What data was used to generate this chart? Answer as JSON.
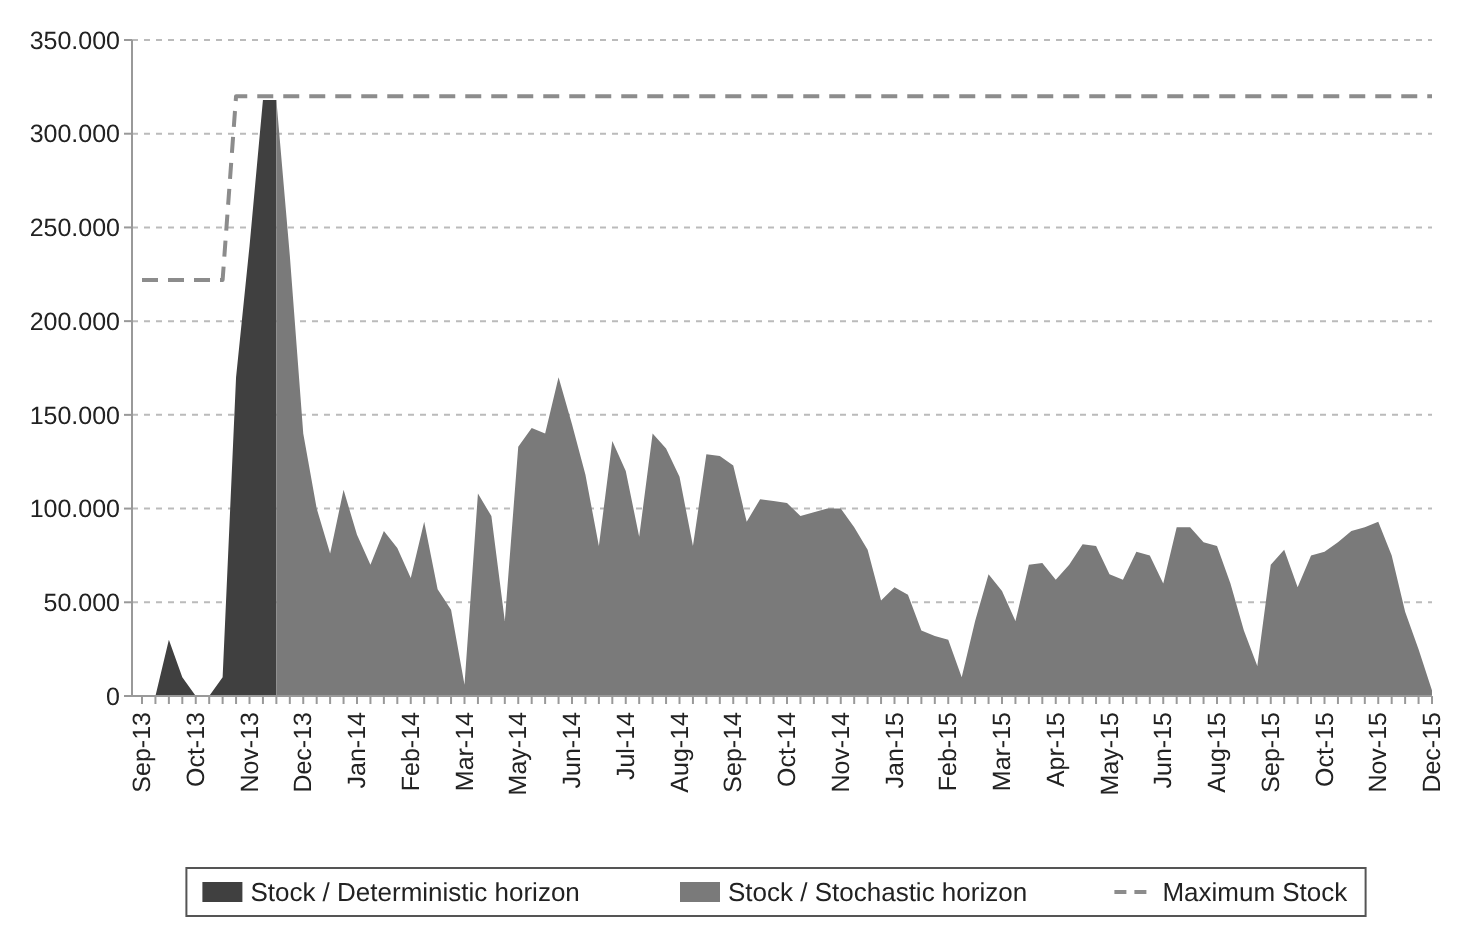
{
  "chart_data": {
    "type": "area",
    "categories": [
      "Sep-13",
      null,
      null,
      null,
      "Oct-13",
      null,
      null,
      null,
      "Nov-13",
      null,
      null,
      null,
      "Dec-13",
      null,
      null,
      null,
      "Jan-14",
      null,
      null,
      null,
      "Feb-14",
      null,
      null,
      null,
      "Mar-14",
      null,
      null,
      null,
      "May-14",
      null,
      null,
      null,
      "Jun-14",
      null,
      null,
      null,
      "Jul-14",
      null,
      null,
      null,
      "Aug-14",
      null,
      null,
      null,
      "Sep-14",
      null,
      null,
      null,
      "Oct-14",
      null,
      null,
      null,
      "Nov-14",
      null,
      null,
      null,
      "Jan-15",
      null,
      null,
      null,
      "Feb-15",
      null,
      null,
      null,
      "Mar-15",
      null,
      null,
      null,
      "Apr-15",
      null,
      null,
      null,
      "May-15",
      null,
      null,
      null,
      "Jun-15",
      null,
      null,
      null,
      "Aug-15",
      null,
      null,
      null,
      "Sep-15",
      null,
      null,
      null,
      "Oct-15",
      null,
      null,
      null,
      "Nov-15",
      null,
      null,
      null,
      "Dec-15"
    ],
    "series": [
      {
        "name": "Stock / Deterministic horizon",
        "color": "#404040",
        "values": [
          null,
          0,
          30000,
          10000,
          0,
          0,
          10000,
          170000,
          240000,
          318000,
          318000,
          null,
          null,
          null,
          null,
          null,
          null,
          null,
          null,
          null,
          null,
          null,
          null,
          null,
          null,
          null,
          null,
          null,
          null,
          null,
          null,
          null,
          null,
          null,
          null,
          null,
          null,
          null,
          null,
          null,
          null,
          null,
          null,
          null,
          null,
          null,
          null,
          null,
          null,
          null,
          null,
          null,
          null,
          null,
          null,
          null,
          null,
          null,
          null,
          null,
          null,
          null,
          null,
          null,
          null,
          null,
          null,
          null,
          null,
          null,
          null,
          null,
          null,
          null,
          null,
          null,
          null,
          null,
          null,
          null,
          null,
          null,
          null,
          null,
          null,
          null,
          null,
          null,
          null,
          null,
          null,
          null,
          null,
          null,
          null,
          null,
          null
        ]
      },
      {
        "name": "Stock / Stochastic horizon",
        "color": "#7a7a7a",
        "values": [
          null,
          null,
          null,
          null,
          null,
          null,
          null,
          null,
          null,
          null,
          318000,
          235000,
          140000,
          100000,
          76000,
          110000,
          86000,
          70000,
          88000,
          79000,
          63000,
          93000,
          57000,
          46000,
          6000,
          108000,
          96000,
          40000,
          133000,
          143000,
          140000,
          170000,
          145000,
          118000,
          80000,
          136000,
          120000,
          85000,
          140000,
          132000,
          117000,
          80000,
          129000,
          128000,
          123000,
          93000,
          105000,
          104000,
          103000,
          96000,
          98000,
          100000,
          100000,
          90000,
          78000,
          51000,
          58000,
          54000,
          35000,
          32000,
          30000,
          10000,
          40000,
          65000,
          56000,
          40000,
          70000,
          71000,
          62000,
          70000,
          81000,
          80000,
          65000,
          62000,
          77000,
          75000,
          60000,
          90000,
          90000,
          82000,
          80000,
          60000,
          35000,
          16000,
          70000,
          78000,
          58000,
          75000,
          77000,
          82000,
          88000,
          90000,
          93000,
          75000,
          45000,
          25000,
          3000
        ]
      },
      {
        "name": "Maximum Stock",
        "type": "line",
        "color": "#8c8c8c",
        "line_style": "dashed",
        "marker": "none",
        "values": [
          222000,
          222000,
          222000,
          222000,
          222000,
          222000,
          222000,
          320000,
          320000,
          320000,
          320000,
          320000,
          320000,
          320000,
          320000,
          320000,
          320000,
          320000,
          320000,
          320000,
          320000,
          320000,
          320000,
          320000,
          320000,
          320000,
          320000,
          320000,
          320000,
          320000,
          320000,
          320000,
          320000,
          320000,
          320000,
          320000,
          320000,
          320000,
          320000,
          320000,
          320000,
          320000,
          320000,
          320000,
          320000,
          320000,
          320000,
          320000,
          320000,
          320000,
          320000,
          320000,
          320000,
          320000,
          320000,
          320000,
          320000,
          320000,
          320000,
          320000,
          320000,
          320000,
          320000,
          320000,
          320000,
          320000,
          320000,
          320000,
          320000,
          320000,
          320000,
          320000,
          320000,
          320000,
          320000,
          320000,
          320000,
          320000,
          320000,
          320000,
          320000,
          320000,
          320000,
          320000,
          320000,
          320000,
          320000,
          320000,
          320000,
          320000,
          320000,
          320000,
          320000,
          320000,
          320000,
          320000,
          320000
        ]
      }
    ],
    "ylim": [
      0,
      350000
    ],
    "yticks": [
      0,
      {
        "value": 50000,
        "label": "50.000"
      },
      {
        "value": 100000,
        "label": "100.000"
      },
      {
        "value": 150000,
        "label": "150.000"
      },
      {
        "value": 200000,
        "label": "200.000"
      },
      {
        "value": 250000,
        "label": "250.000"
      },
      {
        "value": 300000,
        "label": "300.000"
      },
      {
        "value": 350000,
        "label": "350.000"
      }
    ],
    "grid": "y",
    "legend": "bottom"
  }
}
